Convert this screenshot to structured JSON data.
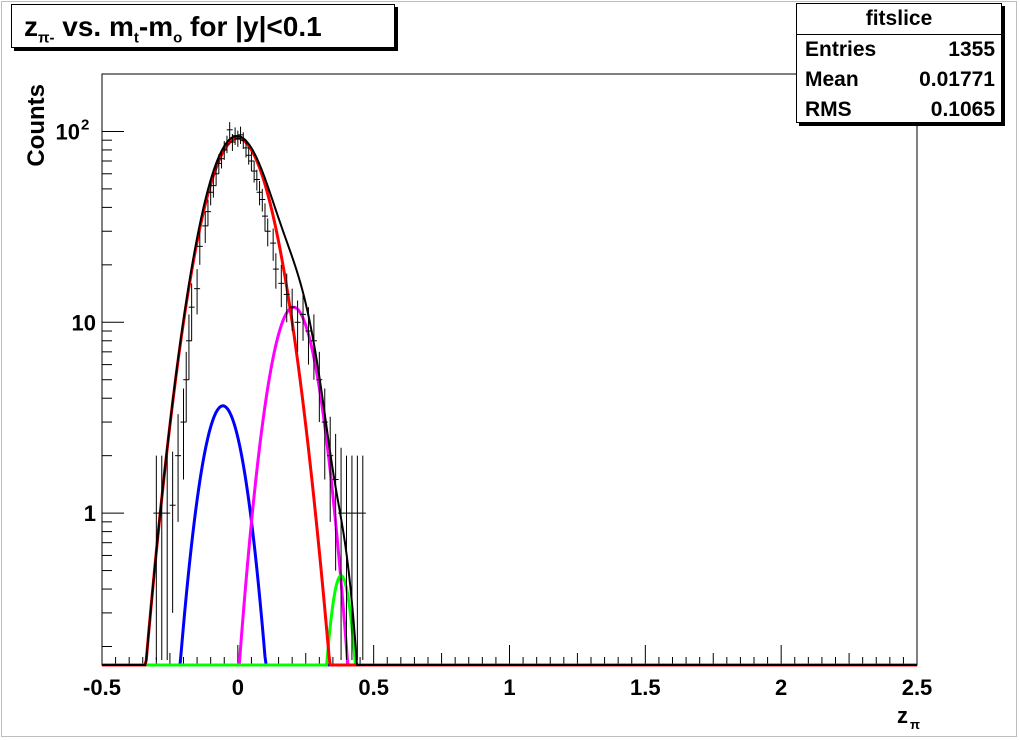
{
  "title_parts": {
    "z": "z",
    "z_sub": "π-",
    "mid": " vs. m",
    "m_sub": "t",
    "dash": "-m",
    "mo_sub": "o",
    "tail": " for |y|<0.1"
  },
  "stats": {
    "name": "fitslice",
    "rows": [
      {
        "label": "Entries",
        "value": "1355"
      },
      {
        "label": "Mean",
        "value": "0.01771"
      },
      {
        "label": "RMS",
        "value": "0.1065"
      }
    ]
  },
  "colors": {
    "data": "#000000",
    "total_fit": "#000000",
    "red": "#ff0000",
    "blue": "#0000ff",
    "magenta": "#ff00ff",
    "green": "#00ff00"
  },
  "chart_data": {
    "type": "scatter",
    "title": "zπ- vs. mt-mo for |y|<0.1",
    "xlabel": "zπ",
    "ylabel": "Counts",
    "xlim": [
      -0.5,
      2.5
    ],
    "ylim": [
      0.16,
      200
    ],
    "log_y": true,
    "grid": false,
    "x_ticks": [
      {
        "v": -0.5,
        "label": "-0.5"
      },
      {
        "v": 0,
        "label": "0"
      },
      {
        "v": 0.5,
        "label": "0.5"
      },
      {
        "v": 1,
        "label": "1"
      },
      {
        "v": 1.5,
        "label": "1.5"
      },
      {
        "v": 2,
        "label": "2"
      },
      {
        "v": 2.5,
        "label": "2.5"
      }
    ],
    "y_labels": [
      {
        "v": 1,
        "label": "1"
      },
      {
        "v": 10,
        "label": "10"
      },
      {
        "v": 100,
        "label": "10",
        "sup": "2"
      }
    ],
    "points": [
      {
        "x": -0.3,
        "y": 1,
        "err": [
          0.17,
          2
        ]
      },
      {
        "x": -0.28,
        "y": 1,
        "err": [
          0.17,
          2
        ]
      },
      {
        "x": -0.26,
        "y": 1,
        "err": [
          0.17,
          2
        ]
      },
      {
        "x": -0.24,
        "y": 1.1,
        "err": [
          0.3,
          2.1
        ]
      },
      {
        "x": -0.22,
        "y": 2,
        "err": [
          0.9,
          3.3
        ]
      },
      {
        "x": -0.2,
        "y": 3,
        "err": [
          1.5,
          4.5
        ]
      },
      {
        "x": -0.19,
        "y": 5,
        "err": [
          3,
          7
        ]
      },
      {
        "x": -0.18,
        "y": 8,
        "err": [
          5,
          11
        ]
      },
      {
        "x": -0.17,
        "y": 12,
        "err": [
          8,
          16
        ]
      },
      {
        "x": -0.15,
        "y": 15,
        "err": [
          11,
          19
        ]
      },
      {
        "x": -0.14,
        "y": 25,
        "err": [
          20,
          30
        ]
      },
      {
        "x": -0.12,
        "y": 32,
        "err": [
          26,
          38
        ]
      },
      {
        "x": -0.11,
        "y": 38,
        "err": [
          32,
          44
        ]
      },
      {
        "x": -0.1,
        "y": 48,
        "err": [
          41,
          55
        ]
      },
      {
        "x": -0.09,
        "y": 52,
        "err": [
          45,
          59
        ]
      },
      {
        "x": -0.08,
        "y": 60,
        "err": [
          52,
          68
        ]
      },
      {
        "x": -0.07,
        "y": 68,
        "err": [
          60,
          76
        ]
      },
      {
        "x": -0.06,
        "y": 72,
        "err": [
          64,
          80
        ]
      },
      {
        "x": -0.05,
        "y": 80,
        "err": [
          71,
          89
        ]
      },
      {
        "x": -0.04,
        "y": 86,
        "err": [
          77,
          95
        ]
      },
      {
        "x": -0.03,
        "y": 102,
        "err": [
          92,
          112
        ]
      },
      {
        "x": -0.02,
        "y": 88,
        "err": [
          79,
          97
        ]
      },
      {
        "x": -0.01,
        "y": 95,
        "err": [
          85,
          105
        ]
      },
      {
        "x": 0.0,
        "y": 92,
        "err": [
          83,
          101
        ]
      },
      {
        "x": 0.01,
        "y": 96,
        "err": [
          86,
          106
        ]
      },
      {
        "x": 0.02,
        "y": 90,
        "err": [
          81,
          99
        ]
      },
      {
        "x": 0.03,
        "y": 82,
        "err": [
          73,
          91
        ]
      },
      {
        "x": 0.04,
        "y": 75,
        "err": [
          67,
          83
        ]
      },
      {
        "x": 0.05,
        "y": 70,
        "err": [
          62,
          78
        ]
      },
      {
        "x": 0.06,
        "y": 62,
        "err": [
          54,
          70
        ]
      },
      {
        "x": 0.07,
        "y": 56,
        "err": [
          49,
          63
        ]
      },
      {
        "x": 0.08,
        "y": 48,
        "err": [
          41,
          55
        ]
      },
      {
        "x": 0.09,
        "y": 44,
        "err": [
          38,
          50
        ]
      },
      {
        "x": 0.1,
        "y": 36,
        "err": [
          30,
          42
        ]
      },
      {
        "x": 0.11,
        "y": 30,
        "err": [
          25,
          35
        ]
      },
      {
        "x": 0.13,
        "y": 26,
        "err": [
          21,
          31
        ]
      },
      {
        "x": 0.14,
        "y": 19,
        "err": [
          15,
          23
        ]
      },
      {
        "x": 0.16,
        "y": 16,
        "err": [
          12,
          20
        ]
      },
      {
        "x": 0.18,
        "y": 14,
        "err": [
          10,
          18
        ]
      },
      {
        "x": 0.2,
        "y": 12,
        "err": [
          9,
          15
        ]
      },
      {
        "x": 0.22,
        "y": 10,
        "err": [
          7,
          13
        ]
      },
      {
        "x": 0.24,
        "y": 11,
        "err": [
          8,
          14
        ]
      },
      {
        "x": 0.26,
        "y": 9,
        "err": [
          6,
          12
        ]
      },
      {
        "x": 0.28,
        "y": 8,
        "err": [
          5,
          11
        ]
      },
      {
        "x": 0.3,
        "y": 5,
        "err": [
          3,
          7
        ]
      },
      {
        "x": 0.32,
        "y": 3,
        "err": [
          1.5,
          4.5
        ]
      },
      {
        "x": 0.34,
        "y": 2,
        "err": [
          0.9,
          3.2
        ]
      },
      {
        "x": 0.36,
        "y": 1.5,
        "err": [
          0.5,
          2.6
        ]
      },
      {
        "x": 0.38,
        "y": 1,
        "err": [
          0.17,
          2.2
        ]
      },
      {
        "x": 0.4,
        "y": 1,
        "err": [
          0.17,
          2
        ]
      },
      {
        "x": 0.42,
        "y": 1,
        "err": [
          0.17,
          2
        ]
      },
      {
        "x": 0.44,
        "y": 1,
        "err": [
          0.17,
          2
        ]
      },
      {
        "x": 0.46,
        "y": 1,
        "err": [
          0.17,
          2
        ]
      }
    ],
    "fit_components": [
      {
        "color": "red",
        "amp": 92,
        "mean": 0.0,
        "sigma": 0.095,
        "xmin": -0.5,
        "xmax": 2.5
      },
      {
        "color": "blue",
        "amp": 3.65,
        "mean": -0.055,
        "sigma": 0.063,
        "xmin": -0.5,
        "xmax": 2.5
      },
      {
        "color": "magenta",
        "amp": 12,
        "mean": 0.205,
        "sigma": 0.068,
        "xmin": -0.5,
        "xmax": 2.5
      },
      {
        "color": "green",
        "amp": 0.47,
        "mean": 0.38,
        "sigma": 0.036,
        "xmin": -0.5,
        "xmax": 0.65
      }
    ]
  }
}
